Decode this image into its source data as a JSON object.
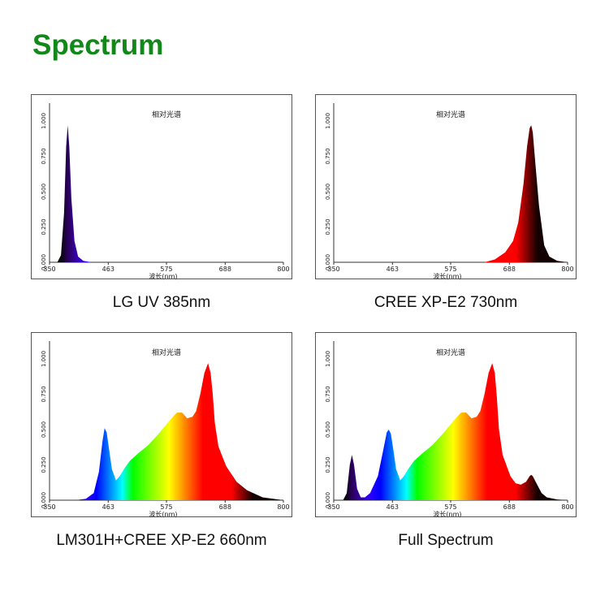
{
  "page": {
    "title": "Spectrum"
  },
  "chart_data": [
    {
      "type": "area",
      "title": "相对光谱",
      "xlabel": "波长(nm)",
      "caption": "LG UV 385nm",
      "xlim": [
        350,
        800
      ],
      "ylim": [
        0,
        1
      ],
      "xticks": [
        "350",
        "463",
        "575",
        "688",
        "800"
      ],
      "yticks": [
        "0.000",
        "0.250",
        "0.500",
        "0.750",
        "1.000"
      ],
      "series": [
        {
          "x": [
            350,
            365,
            372,
            378,
            382,
            385,
            388,
            392,
            398,
            405,
            415,
            430,
            800
          ],
          "values": [
            0,
            0,
            0.05,
            0.35,
            0.82,
            0.97,
            0.82,
            0.45,
            0.15,
            0.04,
            0.01,
            0,
            0
          ]
        }
      ]
    },
    {
      "type": "area",
      "title": "相对光谱",
      "xlabel": "波长(nm)",
      "caption": "CREE XP-E2 730nm",
      "xlim": [
        350,
        800
      ],
      "ylim": [
        0,
        1
      ],
      "xticks": [
        "350",
        "463",
        "575",
        "688",
        "800"
      ],
      "yticks": [
        "0.000",
        "0.250",
        "0.500",
        "0.750",
        "1.000"
      ],
      "series": [
        {
          "x": [
            350,
            640,
            660,
            680,
            695,
            705,
            715,
            722,
            727,
            730,
            733,
            738,
            745,
            755,
            765,
            780,
            800
          ],
          "values": [
            0,
            0,
            0.02,
            0.07,
            0.15,
            0.28,
            0.55,
            0.82,
            0.95,
            0.97,
            0.92,
            0.7,
            0.4,
            0.12,
            0.04,
            0.01,
            0
          ]
        }
      ]
    },
    {
      "type": "area",
      "title": "相对光谱",
      "xlabel": "波长(nm)",
      "caption": "LM301H+CREE XP-E2 660nm",
      "xlim": [
        350,
        800
      ],
      "ylim": [
        0,
        1
      ],
      "xticks": [
        "350",
        "463",
        "575",
        "688",
        "800"
      ],
      "yticks": [
        "0.000",
        "0.250",
        "0.500",
        "0.750",
        "1.000"
      ],
      "series": [
        {
          "x": [
            350,
            400,
            420,
            435,
            445,
            452,
            456,
            460,
            465,
            470,
            478,
            485,
            495,
            505,
            520,
            540,
            560,
            580,
            595,
            605,
            615,
            625,
            632,
            640,
            648,
            655,
            660,
            664,
            668,
            675,
            690,
            710,
            730,
            760,
            790,
            800
          ],
          "values": [
            0,
            0,
            0.01,
            0.05,
            0.2,
            0.42,
            0.51,
            0.48,
            0.35,
            0.22,
            0.14,
            0.17,
            0.23,
            0.28,
            0.33,
            0.39,
            0.47,
            0.56,
            0.62,
            0.62,
            0.58,
            0.59,
            0.63,
            0.75,
            0.9,
            0.97,
            0.9,
            0.75,
            0.55,
            0.38,
            0.24,
            0.13,
            0.07,
            0.02,
            0.005,
            0
          ]
        }
      ]
    },
    {
      "type": "area",
      "title": "相对光谱",
      "xlabel": "波长(nm)",
      "caption": "Full Spectrum",
      "xlim": [
        350,
        800
      ],
      "ylim": [
        0,
        1
      ],
      "xticks": [
        "350",
        "463",
        "575",
        "688",
        "800"
      ],
      "yticks": [
        "0.000",
        "0.250",
        "0.500",
        "0.750",
        "1.000"
      ],
      "series": [
        {
          "x": [
            350,
            368,
            375,
            381,
            385,
            389,
            395,
            402,
            410,
            420,
            435,
            445,
            452,
            456,
            460,
            465,
            470,
            478,
            485,
            495,
            505,
            520,
            540,
            560,
            580,
            595,
            605,
            615,
            625,
            632,
            640,
            648,
            655,
            660,
            664,
            668,
            675,
            690,
            700,
            710,
            720,
            727,
            730,
            733,
            740,
            750,
            760,
            780,
            800
          ],
          "values": [
            0,
            0,
            0.05,
            0.25,
            0.32,
            0.25,
            0.08,
            0.02,
            0.02,
            0.05,
            0.17,
            0.35,
            0.48,
            0.5,
            0.47,
            0.35,
            0.22,
            0.14,
            0.17,
            0.23,
            0.28,
            0.33,
            0.39,
            0.47,
            0.56,
            0.62,
            0.62,
            0.58,
            0.59,
            0.63,
            0.75,
            0.9,
            0.97,
            0.9,
            0.72,
            0.5,
            0.32,
            0.17,
            0.12,
            0.11,
            0.13,
            0.17,
            0.18,
            0.17,
            0.12,
            0.05,
            0.02,
            0.005,
            0
          ]
        }
      ]
    }
  ]
}
